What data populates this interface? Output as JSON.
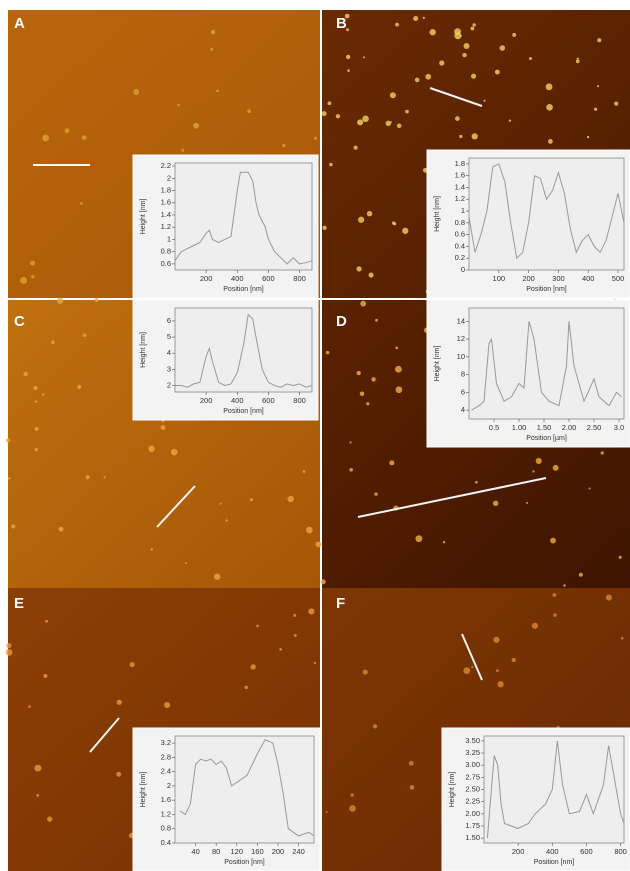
{
  "chart_data": [
    {
      "type": "line",
      "panel": "A",
      "x_label": "Position [nm]",
      "y_label": "Height [nm]",
      "color": "#999999",
      "x": [
        0,
        40,
        80,
        120,
        160,
        200,
        220,
        240,
        280,
        320,
        360,
        400,
        420,
        440,
        470,
        500,
        520,
        540,
        560,
        580,
        600,
        640,
        680,
        720,
        760,
        800,
        840,
        880
      ],
      "values": [
        0.65,
        0.8,
        0.85,
        0.9,
        0.95,
        1.1,
        1.15,
        1.0,
        0.95,
        1.0,
        1.05,
        1.8,
        2.1,
        2.1,
        2.1,
        1.95,
        1.6,
        1.4,
        1.3,
        1.2,
        1.0,
        0.8,
        0.7,
        0.6,
        0.7,
        0.6,
        0.62,
        0.65
      ],
      "xlim": [
        0,
        880
      ],
      "ylim": [
        0.5,
        2.25
      ],
      "xticks": [
        200,
        400,
        600,
        800
      ],
      "yticks": [
        0.6,
        0.8,
        1.0,
        1.2,
        1.4,
        1.6,
        1.8,
        2.0,
        2.2
      ]
    },
    {
      "type": "line",
      "panel": "B",
      "x_label": "Position [nm]",
      "y_label": "Height [nm]",
      "color": "#999999",
      "x": [
        0,
        20,
        40,
        60,
        80,
        100,
        120,
        140,
        160,
        180,
        200,
        220,
        240,
        260,
        280,
        300,
        320,
        340,
        360,
        380,
        400,
        420,
        440,
        460,
        480,
        500,
        520
      ],
      "values": [
        0.9,
        0.3,
        0.6,
        1.0,
        1.75,
        1.8,
        1.5,
        0.8,
        0.2,
        0.3,
        0.8,
        1.6,
        1.55,
        1.2,
        1.35,
        1.65,
        1.3,
        0.7,
        0.3,
        0.5,
        0.6,
        0.4,
        0.3,
        0.5,
        0.9,
        1.3,
        0.8
      ],
      "xlim": [
        0,
        520
      ],
      "ylim": [
        0,
        1.9
      ],
      "xticks": [
        100,
        200,
        300,
        400,
        500
      ],
      "yticks": [
        0.0,
        0.2,
        0.4,
        0.6,
        0.8,
        1.0,
        1.2,
        1.4,
        1.6,
        1.8
      ]
    },
    {
      "type": "line",
      "panel": "C",
      "x_label": "Position [nm]",
      "y_label": "Height [nm]",
      "color": "#999999",
      "x": [
        0,
        40,
        80,
        120,
        160,
        200,
        220,
        240,
        280,
        320,
        360,
        400,
        440,
        470,
        500,
        520,
        560,
        600,
        640,
        680,
        720,
        760,
        800,
        840,
        880
      ],
      "values": [
        2.0,
        2.0,
        1.9,
        2.1,
        2.2,
        3.8,
        4.3,
        3.5,
        2.2,
        2.0,
        2.1,
        2.8,
        4.5,
        6.4,
        6.1,
        5.0,
        3.0,
        2.2,
        2.0,
        1.9,
        2.1,
        2.0,
        2.1,
        1.9,
        2.0
      ],
      "xlim": [
        0,
        880
      ],
      "ylim": [
        1.6,
        6.8
      ],
      "xticks": [
        200,
        400,
        600,
        800
      ],
      "yticks": [
        2,
        3,
        4,
        5,
        6
      ]
    },
    {
      "type": "line",
      "panel": "D",
      "x_label": "Position [µm]",
      "y_label": "Height [nm]",
      "color": "#999999",
      "x": [
        0.05,
        0.2,
        0.3,
        0.4,
        0.45,
        0.55,
        0.7,
        0.85,
        1.0,
        1.1,
        1.2,
        1.3,
        1.45,
        1.6,
        1.8,
        1.95,
        2.0,
        2.1,
        2.3,
        2.5,
        2.6,
        2.8,
        2.95,
        3.05
      ],
      "values": [
        4,
        4.5,
        5,
        11.5,
        12,
        7,
        5,
        5.5,
        7,
        6.5,
        14,
        12,
        6,
        5,
        4.5,
        9,
        14,
        9,
        5,
        7.5,
        5.5,
        4.5,
        6,
        5.5
      ],
      "xlim": [
        0,
        3.1
      ],
      "ylim": [
        3,
        15.5
      ],
      "xticks": [
        {
          "value": 0.5,
          "label": "0.5"
        },
        {
          "value": 1.0,
          "label": "1.00"
        },
        {
          "value": 1.5,
          "label": "1.50"
        },
        {
          "value": 2.0,
          "label": "2.00"
        },
        {
          "value": 2.5,
          "label": "2.50"
        },
        {
          "value": 3.0,
          "label": "3.0"
        }
      ],
      "yticks": [
        4,
        6,
        8,
        10,
        12,
        14
      ]
    },
    {
      "type": "line",
      "panel": "E",
      "x_label": "Position [nm]",
      "y_label": "Height [nm]",
      "color": "#999999",
      "x": [
        10,
        20,
        30,
        40,
        50,
        60,
        70,
        80,
        90,
        100,
        110,
        120,
        140,
        160,
        175,
        190,
        200,
        210,
        220,
        240,
        260,
        270
      ],
      "values": [
        1.3,
        1.2,
        1.5,
        2.6,
        2.75,
        2.7,
        2.75,
        2.6,
        2.7,
        2.5,
        2.0,
        2.1,
        2.3,
        2.9,
        3.3,
        3.2,
        2.6,
        1.8,
        0.8,
        0.6,
        0.7,
        0.6
      ],
      "xlim": [
        0,
        270
      ],
      "ylim": [
        0.4,
        3.4
      ],
      "xticks": [
        40,
        80,
        120,
        160,
        200,
        240
      ],
      "yticks": [
        0.4,
        0.8,
        1.2,
        1.6,
        2.0,
        2.4,
        2.8,
        3.2
      ]
    },
    {
      "type": "line",
      "panel": "F",
      "x_label": "Position [nm]",
      "y_label": "Height [nm]",
      "color": "#999999",
      "x": [
        20,
        60,
        80,
        100,
        120,
        160,
        200,
        260,
        300,
        360,
        400,
        430,
        460,
        500,
        560,
        600,
        640,
        700,
        730,
        760,
        800,
        820
      ],
      "values": [
        1.5,
        3.2,
        3.0,
        2.2,
        1.8,
        1.75,
        1.7,
        1.8,
        2.0,
        2.2,
        2.5,
        3.5,
        2.6,
        2.0,
        2.05,
        2.4,
        2.0,
        2.6,
        3.4,
        2.8,
        2.0,
        1.8
      ],
      "xlim": [
        0,
        820
      ],
      "ylim": [
        1.4,
        3.6
      ],
      "xticks": [
        200,
        400,
        600,
        800
      ],
      "yticks": [
        {
          "value": 1.5,
          "label": "1.50"
        },
        {
          "value": 1.75,
          "label": "1.75"
        },
        {
          "value": 2.0,
          "label": "2.00"
        },
        {
          "value": 2.25,
          "label": "2.25"
        },
        {
          "value": 2.5,
          "label": "2.50"
        },
        {
          "value": 2.75,
          "label": "2.75"
        },
        {
          "value": 3.0,
          "label": "3.00"
        },
        {
          "value": 3.25,
          "label": "3.25"
        },
        {
          "value": 3.5,
          "label": "3.50"
        }
      ]
    }
  ]
}
